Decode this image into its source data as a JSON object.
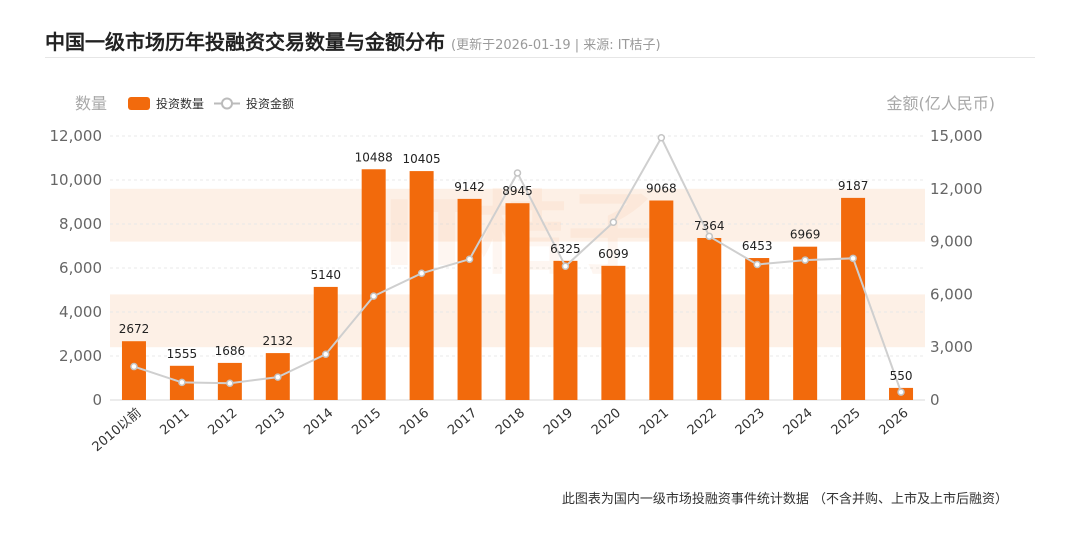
{
  "header": {
    "title": "中国一级市场历年投融资交易数量与金额分布",
    "subtitle": "(更新于2026-01-19 | 来源: IT桔子)"
  },
  "footnote": "此图表为国内一级市场投融资事件统计数据 （不含并购、上市及上市后融资）",
  "watermark": "IT桔子",
  "colors": {
    "bar": "#f26a0c",
    "line": "#cfcfcf",
    "band": "#fdf0e6",
    "axis_text": "#666666",
    "axis_title": "#a8a8a8"
  },
  "chart_data": {
    "type": "bar",
    "categories": [
      "2010以前",
      "2011",
      "2012",
      "2013",
      "2014",
      "2015",
      "2016",
      "2017",
      "2018",
      "2019",
      "2020",
      "2021",
      "2022",
      "2023",
      "2024",
      "2025",
      "2026"
    ],
    "series": [
      {
        "name": "投资数量",
        "type": "bar",
        "axis": "left",
        "values": [
          2672,
          1555,
          1686,
          2132,
          5140,
          10488,
          10405,
          9142,
          8945,
          6325,
          6099,
          9068,
          7364,
          6453,
          6969,
          9187,
          550
        ]
      },
      {
        "name": "投资金额",
        "type": "line",
        "axis": "right",
        "values": [
          1900,
          1000,
          950,
          1300,
          2600,
          5900,
          7200,
          8000,
          12900,
          7600,
          10100,
          14900,
          9300,
          7700,
          7950,
          8050,
          450
        ]
      }
    ],
    "ylabel": "数量",
    "y2label": "金额(亿人民币)",
    "ylim": [
      0,
      12000
    ],
    "y2lim": [
      0,
      15000
    ],
    "yticks": [
      "0",
      "2,000",
      "4,000",
      "6,000",
      "8,000",
      "10,000",
      "12,000"
    ],
    "y2ticks": [
      "0",
      "3,000",
      "6,000",
      "9,000",
      "12,000",
      "15,000"
    ],
    "legend_position": "top-left",
    "grid": true
  }
}
